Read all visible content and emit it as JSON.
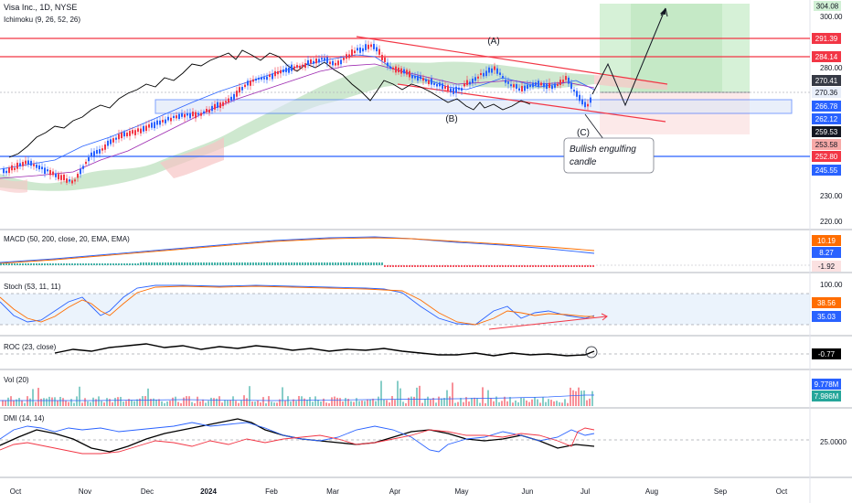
{
  "main_panel": {
    "symbol_title": "Visa Inc., 1D, NYSE",
    "indicator": "Ichimoku (9, 26, 52, 26)",
    "wave_labels": [
      "(B)",
      "(A)",
      "(C)"
    ],
    "annotation": [
      "Bullish engulfing",
      "candle"
    ],
    "price_ticks": [
      "304.08",
      "300.00",
      "280.00",
      "230.00",
      "220.00"
    ],
    "price_badges": [
      {
        "value": "291.39",
        "bg": "#f23645",
        "fg": "#ffffff"
      },
      {
        "value": "284.14",
        "bg": "#f23645",
        "fg": "#ffffff"
      },
      {
        "value": "270.41",
        "bg": "#363a45",
        "fg": "#ffffff"
      },
      {
        "value": "270.36",
        "bg": "#e8eef9",
        "fg": "#131722"
      },
      {
        "value": "266.78",
        "bg": "#2962ff",
        "fg": "#ffffff"
      },
      {
        "value": "262.12",
        "bg": "#2962ff",
        "fg": "#ffffff"
      },
      {
        "value": "259.53",
        "bg": "#131722",
        "fg": "#ffffff"
      },
      {
        "value": "253.58",
        "bg": "#f7a9a7",
        "fg": "#131722"
      },
      {
        "value": "252.80",
        "bg": "#f23645",
        "fg": "#ffffff"
      },
      {
        "value": "245.55",
        "bg": "#2962ff",
        "fg": "#ffffff"
      }
    ],
    "top_badge": {
      "value": "304.08",
      "bg": "#d1f0d5"
    }
  },
  "macd_panel": {
    "title": "MACD (50, 200, close, 20, EMA, EMA)",
    "badges": [
      {
        "value": "10.19",
        "bg": "#ff6d00",
        "fg": "#ffffff"
      },
      {
        "value": "8.27",
        "bg": "#2962ff",
        "fg": "#ffffff"
      },
      {
        "value": "-1.92",
        "bg": "#fbe1e1",
        "fg": "#131722"
      }
    ]
  },
  "stoch_panel": {
    "title": "Stoch (53, 11, 11)",
    "ticks": [
      "100.00"
    ],
    "badges": [
      {
        "value": "38.56",
        "bg": "#ff6d00",
        "fg": "#ffffff"
      },
      {
        "value": "35.03",
        "bg": "#2962ff",
        "fg": "#ffffff"
      }
    ]
  },
  "roc_panel": {
    "title": "ROC (23, close)",
    "badges": [
      {
        "value": "-0.77",
        "bg": "#000000",
        "fg": "#ffffff"
      }
    ]
  },
  "vol_panel": {
    "title": "Vol (20)",
    "badges": [
      {
        "value": "9.778M",
        "bg": "#2962ff",
        "fg": "#ffffff"
      },
      {
        "value": "7.986M",
        "bg": "#26a69a",
        "fg": "#ffffff"
      }
    ]
  },
  "dmi_panel": {
    "title": "DMI (14, 14)",
    "ticks": [
      "25.0000"
    ]
  },
  "time_axis": {
    "labels": [
      "Oct",
      "Nov",
      "Dec",
      "2024",
      "Feb",
      "Mar",
      "Apr",
      "May",
      "Jun",
      "Jul",
      "Aug",
      "Sep",
      "Oct"
    ]
  },
  "colors": {
    "bull": "#2962ff",
    "bear": "#f23645",
    "cloud_bull": "#a5d6a7",
    "cloud_bear": "#f7c5c5",
    "channel": "#f23645",
    "support": "#2962ff"
  }
}
